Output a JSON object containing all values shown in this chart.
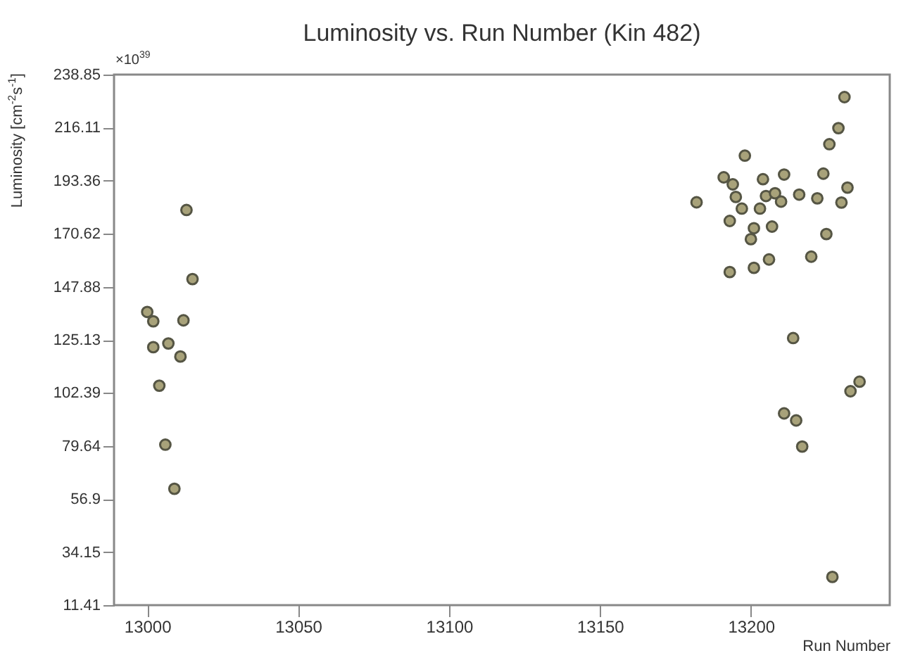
{
  "chart_data": {
    "type": "scatter",
    "title": "Luminosity vs. Run Number (Kin 482)",
    "xlabel": "Run Number",
    "ylabel": "Luminosity [cm$^{-2}$s$^{-1}$]",
    "annotations": [
      "×10$^{39}$"
    ],
    "marker": "circle",
    "series": [
      {
        "color": "#a8a27a",
        "x": [
          13000,
          13002,
          13013,
          13015,
          13012,
          13002,
          13007,
          13011,
          13004,
          13006,
          13009,
          13231,
          13229,
          13226,
          13198,
          13191,
          13194,
          13204,
          13211,
          13224,
          13232,
          13182,
          13195,
          13205,
          13208,
          13210,
          13216,
          13222,
          13230,
          13197,
          13203,
          13193,
          13201,
          13207,
          13200,
          13225,
          13206,
          13220,
          13193,
          13201,
          13214,
          13236,
          13233,
          13211,
          13215,
          13217,
          13227
        ],
        "values": [
          137.1,
          133.1,
          180.8,
          151.2,
          133.5,
          122.0,
          123.6,
          118.0,
          105.5,
          80.2,
          61.3,
          229.2,
          215.9,
          209.0,
          204.1,
          194.8,
          191.8,
          194.0,
          196.0,
          196.4,
          190.4,
          184.1,
          186.4,
          186.8,
          188.0,
          184.4,
          187.4,
          185.8,
          184.0,
          181.4,
          181.4,
          176.1,
          173.0,
          173.7,
          168.3,
          170.5,
          159.6,
          160.8,
          154.2,
          156.0,
          125.9,
          107.2,
          103.1,
          93.6,
          90.6,
          79.4,
          23.5
        ]
      }
    ],
    "xlim": [
      12989,
      13246
    ],
    "xticks": [
      13000,
      13050,
      13100,
      13150,
      13200
    ],
    "ylim": [
      11.41,
      238.85
    ],
    "yticks": [
      11.41,
      34.15,
      56.9,
      79.64,
      102.39,
      125.13,
      147.88,
      170.62,
      193.36,
      216.11,
      238.85
    ],
    "grid": false
  }
}
